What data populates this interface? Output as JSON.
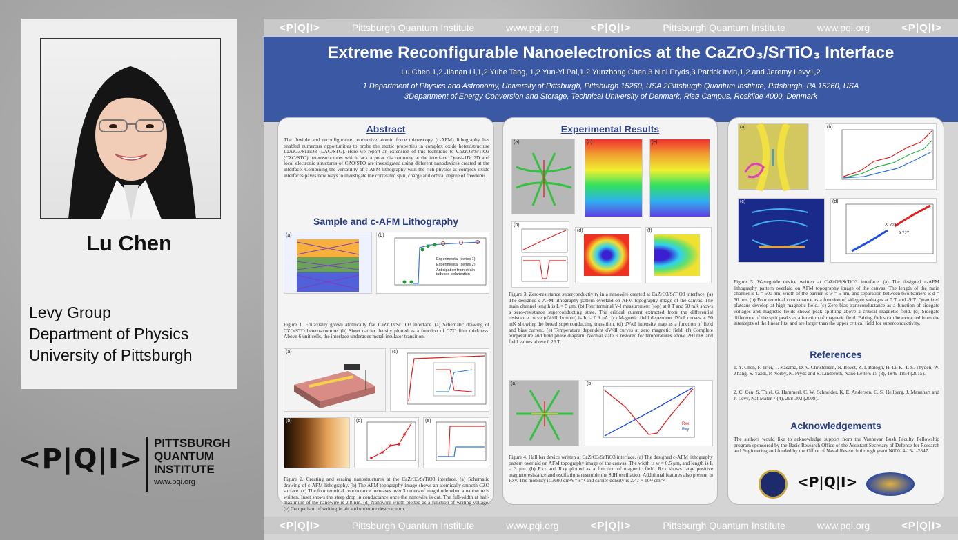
{
  "presenter": {
    "name": "Lu Chen",
    "group": "Levy Group",
    "department": "Department of Physics",
    "university": "University of Pittsburgh"
  },
  "logo": {
    "mark": "<P|Q|I>",
    "line1": "PITTSBURGH",
    "line2": "QUANTUM",
    "line3": "INSTITUTE",
    "url": "www.pqi.org"
  },
  "poster": {
    "band_items": [
      "<P|Q|I>",
      "Pittsburgh Quantum Institute",
      "www.pqi.org",
      "<P|Q|I>",
      "Pittsburgh Quantum Institute",
      "www.pqi.org",
      "<P|Q|I>"
    ],
    "title": "Extreme Reconfigurable Nanoelectronics at the CaZrO₃/SrTiO₃ Interface",
    "authors": "Lu Chen,1,2 Jianan Li,1,2 Yuhe Tang, 1,2 Yun-Yi Pai,1,2 Yunzhong Chen,3 Nini Pryds,3 Patrick Irvin,1,2 and Jeremy Levy1,2",
    "affil1": "1 Department of Physics and Astronomy, University of Pittsburgh, Pittsburgh 15260, USA  2Pittsburgh Quantum Institute, Pittsburgh, PA 15260, USA",
    "affil2": "3Department of Energy Conversion and Storage, Technical University of Denmark, Risø Campus, Roskilde 4000, Denmark",
    "abstract": {
      "heading": "Abstract",
      "text": "The flexible and reconfigurable conductive atomic force microscopy (c-AFM) lithography has enabled numerous opportunities to probe the exotic properties in complex oxide heterostructure LaAlO3/SrTiO3 (LAO/STO). Here we report an extension of this technique to CaZrO3/SrTiO3 (CZO/STO) heterostructures which lack a polar discontinuity at the interface. Quasi-1D, 2D and local electronic structures of CZO/STO are investigated using different nanodevices created at the interface. Combining the versatility of c-AFM lithography with the rich physics at complex oxide interfaces paves new ways to investigate the correlated spin, charge and orbital degree of freedoms."
    },
    "sample": {
      "heading": "Sample and c-AFM Lithography",
      "fig1_caption": "Figure 1. Epitaxially grown atomically flat CaZrO3/SrTiO3 interface. (a) Schematic drawing of CZO/STO heterostructure. (b) Sheet carrier density plotted as a function of CZO film thickness. Above 6 unit cells, the interface undergoes metal-insulator transition.",
      "fig1_legend": [
        "Experimental (series 1)",
        "Experimental (series 2)",
        "Anticipation from strain induced polarization"
      ],
      "fig2_caption": "Figure 2. Creating and erasing nanostructures at the CaZrO3/SrTiO3 interface. (a) Schematic drawing of c-AFM lithography. (b) The AFM topography image shows an atomically smooth CZO surface. (c) The four terminal conductance increases over 3 orders of magnitude when a nanowire is written. Inset shows the steep drop in conductance once the nanowire is cut. The full-width at half-maximum of the nanowire is 2.8 nm. (d) Nanowire width plotted as a function of writing voltage. (e) Comparison of writing in air and under modest vacuum."
    },
    "results": {
      "heading": "Experimental Results",
      "fig3_caption": "Figure 3. Zero-resistance superconductivity in a nanowire created at CaZrO3/SrTiO3 interface. (a) The designed c-AFM lithography pattern overlaid on AFM topography image of the canvas. The main channel length is L = 5 μm. (b) Four terminal V-I measurement (top) at 0 T and 50 mK shows a zero-resistance superconducting state. The critical current extracted from the differential resistance curve (dV/dI, bottom) is Ic = 0.9 nA. (c) Magnetic field dependent dV/dI curves at 50 mK showing the broad superconducting transition. (d) dV/dI intensity map as a function of field and bias current. (e) Temperature dependent dV/dI curves at zero magnetic field. (f) Complete temperature and field phase diagram. Normal state is restored for temperatures above 260 mK and field values above 0.26 T.",
      "fig4_caption": "Figure 4. Hall bar device written at CaZrO3/SrTiO3 interface. (a) The designed c-AFM lithography pattern overlaid on AFM topography image of the canvas. The width is w = 0.5 μm, and length is L = 3 μm. (b) Rxx and Rxy plotted as a function of magnetic field. Rxx shows large positive magnetoresistance and oscillations resemble the SdH oscillation. Additional features also present in Rxy. The mobility is 3600 cm²V⁻¹s⁻¹ and carrier density is 2.47 × 10¹³ cm⁻².",
      "fig4_legend": [
        "Rxx",
        "Rxy"
      ]
    },
    "right": {
      "fig5_caption": "Figure 5. Waveguide device written at CaZrO3/SrTiO3 interface. (a) The designed c-AFM lithography pattern overlaid on AFM topography image of the canvas. The length of the main channel is L = 500 nm, width of the barrier is w = 5 nm, and separation between two barriers is d = 50 nm. (b) Four terminal conductance as a function of sidegate voltages at 0 T and -9 T. Quantized plateaus develop at high magnetic field. (c) Zero-bias transconductance as a function of sidegate voltages and magnetic fields shows peak splitting above a critical magnetic field. (d) Sidegate difference of the split peaks as a function of magnetic field. Pairing fields can be extracted from the intercepts of the linear fits, and are larger than the upper critical field for superconductivity.",
      "fig5_labels": [
        "-9.72T",
        "9.72T"
      ],
      "refs_heading": "References",
      "refs": [
        "1. Y. Chen, F. Trier, T. Kasama, D. V. Christensen, N. Bovet, Z. I. Balogh, H. Li, K. T. S. Thydén, W. Zhang, S. Yazdi, P. Norby, N. Pryds and S. Linderoth, Nano Letters 15 (3), 1849-1854 (2015).",
        "2. C. Cen, S. Thiel, G. Hammerl, C. W. Schneider, K. E. Andersen, C. S. Hellberg, J. Mannhart and J. Levy, Nat Mater 7 (4), 298-302 (2008)."
      ],
      "ack_heading": "Acknowledgements",
      "ack_text": "The authors would like to acknowledge support from the Vannevar Bush Faculty Fellowship program sponsored by the Basic Research Office of the Assistant Secretary of Defense for Research and Engineering and funded by the Office of Naval Research through grant N00014-15-1-2847.",
      "pqi_mark": "<P|Q|I>"
    },
    "panel_labels": [
      "(a)",
      "(b)",
      "(c)",
      "(d)",
      "(e)",
      "(f)"
    ]
  }
}
